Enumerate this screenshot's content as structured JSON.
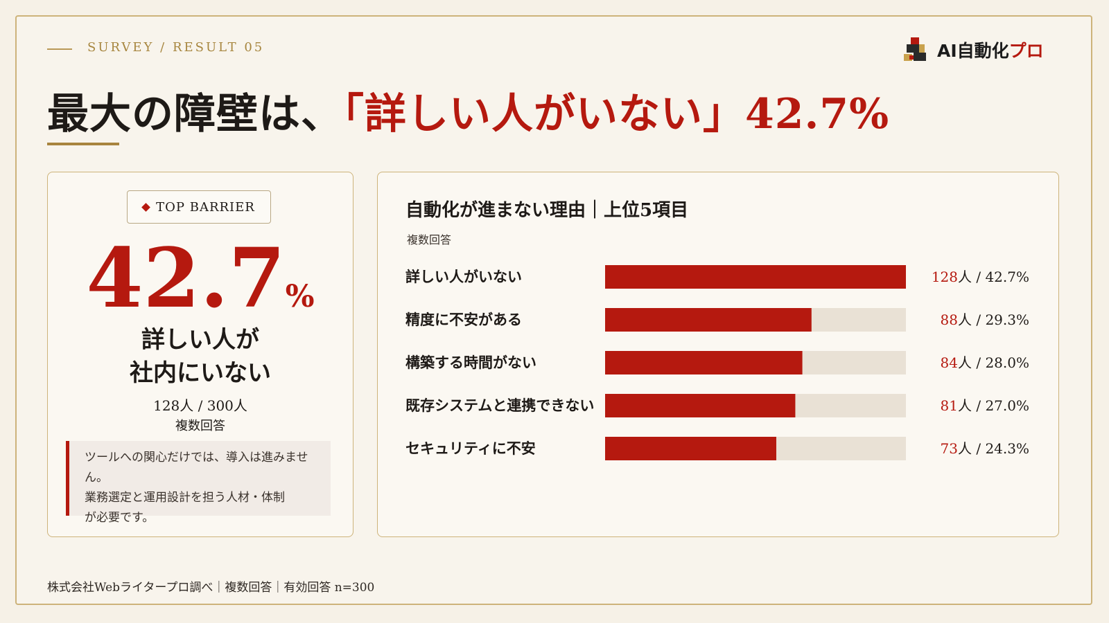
{
  "header": {
    "kicker": "SURVEY / RESULT 05",
    "headline_prefix": "最大の障壁は、",
    "headline_highlight": "「詳しい人がいない」",
    "headline_value": "42.7%"
  },
  "logo": {
    "text_main": "AI自動化",
    "text_accent": "プロ",
    "icon": "logo-cube-icon"
  },
  "summary": {
    "badge": "TOP BARRIER",
    "big_value": "42.7",
    "big_unit": "%",
    "label_line1": "詳しい人が",
    "label_line2": "社内にいない",
    "count": "128人 / 300人",
    "note_multi": "複数回答",
    "comment_line1": "ツールへの関心だけでは、導入は進みません。",
    "comment_line2": "業務選定と運用設計を担う人材・体制",
    "comment_line3": "が必要です。"
  },
  "chart_data": {
    "type": "bar",
    "title": "自動化が進まない理由｜上位5項目",
    "subtitle": "複数回答",
    "categories": [
      "詳しい人がいない",
      "精度に不安がある",
      "構築する時間がない",
      "既存システムと連携できない",
      "セキュリティに不安"
    ],
    "counts": [
      128,
      88,
      84,
      81,
      73
    ],
    "count_unit": "人",
    "values": [
      42.7,
      29.3,
      28.0,
      27.0,
      24.3
    ],
    "value_labels": [
      "42.7%",
      "29.3%",
      "28.0%",
      "27.0%",
      "24.3%"
    ],
    "xlim": [
      0,
      42.7
    ],
    "grid": false,
    "legend": "none",
    "colors": {
      "bar": "#b5190f",
      "track": "#e9e1d5",
      "count": "#b5190f"
    }
  },
  "footer": {
    "source": "株式会社Webライタープロ調べ｜複数回答｜有効回答 n=300"
  }
}
